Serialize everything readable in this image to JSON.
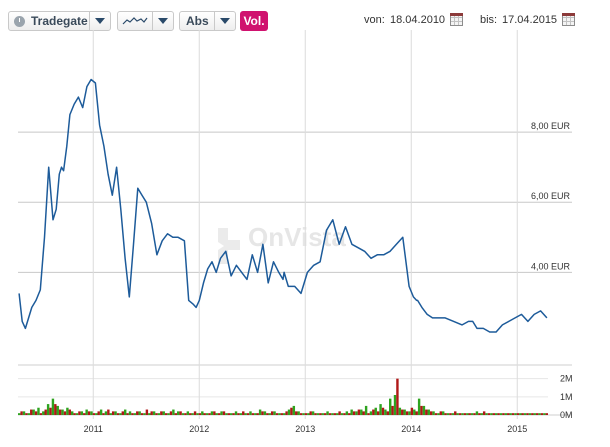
{
  "toolbar": {
    "exchange": "Tradegate",
    "chart_style_icon": "line-chart-icon",
    "scale": "Abs",
    "volume_button": "Vol.",
    "from_label": "von:",
    "from_date": "18.04.2010",
    "to_label": "bis:",
    "to_date": "17.04.2015"
  },
  "watermark": "OnVista",
  "colors": {
    "price_line": "#1d5b9a",
    "volume_up": "#2ea31f",
    "volume_down": "#b01818",
    "vol_button": "#d0126f"
  },
  "chart_data": {
    "type": "line",
    "title": "",
    "ylabel": "",
    "ylim": [
      1.5,
      10.2
    ],
    "y_ticks": [
      {
        "value": 4,
        "label": "4,00 EUR"
      },
      {
        "value": 6,
        "label": "6,00 EUR"
      },
      {
        "value": 8,
        "label": "8,00 EUR"
      }
    ],
    "x_ticks": [
      {
        "value": 2011.0,
        "label": "2011"
      },
      {
        "value": 2012.0,
        "label": "2012"
      },
      {
        "value": 2013.0,
        "label": "2013"
      },
      {
        "value": 2014.0,
        "label": "2014"
      },
      {
        "value": 2015.0,
        "label": "2015"
      }
    ],
    "xlim": [
      2010.29,
      2015.29
    ],
    "grid": true,
    "series": [
      {
        "x": [
          2010.3,
          2010.33,
          2010.36,
          2010.39,
          2010.42,
          2010.46,
          2010.5,
          2010.54,
          2010.58,
          2010.62,
          2010.65,
          2010.68,
          2010.7,
          2010.72,
          2010.75,
          2010.78,
          2010.82,
          2010.86,
          2010.9,
          2010.94,
          2010.98,
          2011.02,
          2011.06,
          2011.1,
          2011.14,
          2011.18,
          2011.22,
          2011.26,
          2011.3,
          2011.34,
          2011.38,
          2011.42,
          2011.46,
          2011.5,
          2011.55,
          2011.6,
          2011.65,
          2011.7,
          2011.75,
          2011.8,
          2011.86,
          2011.9,
          2011.94,
          2011.97,
          2012.0,
          2012.04,
          2012.08,
          2012.12,
          2012.16,
          2012.2,
          2012.25,
          2012.3,
          2012.35,
          2012.4,
          2012.45,
          2012.5,
          2012.55,
          2012.6,
          2012.65,
          2012.7,
          2012.75,
          2012.79,
          2012.8,
          2012.84,
          2012.9,
          2012.96,
          2013.02,
          2013.08,
          2013.14,
          2013.2,
          2013.26,
          2013.32,
          2013.38,
          2013.44,
          2013.5,
          2013.56,
          2013.62,
          2013.68,
          2013.74,
          2013.8,
          2013.86,
          2013.92,
          2013.98,
          2014.02,
          2014.05,
          2014.06,
          2014.1,
          2014.15,
          2014.2,
          2014.26,
          2014.32,
          2014.4,
          2014.48,
          2014.54,
          2014.58,
          2014.62,
          2014.68,
          2014.74,
          2014.8,
          2014.86,
          2014.92,
          2014.98,
          2015.04,
          2015.1,
          2015.16,
          2015.22,
          2015.28
        ],
        "y": [
          3.4,
          2.6,
          2.4,
          2.7,
          3.0,
          3.2,
          3.5,
          5.0,
          7.0,
          5.5,
          5.8,
          6.8,
          7.0,
          6.9,
          7.6,
          8.5,
          8.8,
          9.0,
          8.7,
          9.3,
          9.5,
          9.4,
          8.2,
          7.6,
          6.8,
          6.2,
          7.0,
          5.8,
          4.4,
          3.3,
          4.8,
          6.4,
          6.2,
          6.0,
          5.4,
          4.5,
          4.9,
          5.1,
          5.0,
          5.0,
          4.9,
          3.2,
          3.1,
          3.0,
          3.2,
          3.7,
          4.1,
          4.3,
          4.0,
          4.4,
          4.6,
          3.9,
          4.2,
          4.0,
          3.8,
          4.5,
          4.0,
          4.8,
          3.7,
          4.3,
          4.0,
          3.8,
          4.0,
          3.6,
          3.6,
          3.4,
          4.0,
          4.2,
          4.3,
          5.2,
          5.5,
          4.8,
          5.3,
          4.8,
          4.7,
          4.6,
          4.4,
          4.5,
          4.5,
          4.6,
          4.8,
          5.0,
          3.6,
          3.3,
          3.2,
          3.2,
          3.0,
          2.8,
          2.7,
          2.7,
          2.7,
          2.6,
          2.5,
          2.6,
          2.6,
          2.4,
          2.4,
          2.3,
          2.3,
          2.5,
          2.6,
          2.7,
          2.8,
          2.6,
          2.8,
          2.9,
          2.7
        ]
      }
    ],
    "volume": {
      "y_ticks": [
        {
          "value": 0,
          "label": "0M"
        },
        {
          "value": 1,
          "label": "1M"
        },
        {
          "value": 2,
          "label": "2M"
        }
      ],
      "ylim": [
        0,
        2.2
      ],
      "up": [
        0.1,
        0.2,
        0.1,
        0.3,
        0.4,
        0.2,
        0.6,
        0.9,
        0.5,
        0.3,
        0.4,
        0.2,
        0.1,
        0.2,
        0.3,
        0.2,
        0.1,
        0.3,
        0.2,
        0.1,
        0.2,
        0.1,
        0.3,
        0.2,
        0.1,
        0.2,
        0.1,
        0.1,
        0.2,
        0.1,
        0.2,
        0.1,
        0.3,
        0.2,
        0.1,
        0.2,
        0.1,
        0.1,
        0.2,
        0.1,
        0.2,
        0.1,
        0.2,
        0.1,
        0.1,
        0.2,
        0.1,
        0.1,
        0.2,
        0.1,
        0.3,
        0.2,
        0.1,
        0.2,
        0.1,
        0.1,
        0.3,
        0.5,
        0.2,
        0.1,
        0.1,
        0.2,
        0.1,
        0.1,
        0.2,
        0.1,
        0.1,
        0.1,
        0.2,
        0.3,
        0.2,
        0.3,
        0.5,
        0.2,
        0.4,
        0.6,
        0.3,
        0.9,
        1.1,
        0.4,
        0.3,
        0.2,
        0.3,
        0.9,
        0.5,
        0.3,
        0.2,
        0.1,
        0.2,
        0.1,
        0.1,
        0.1,
        0.1,
        0.1,
        0.1,
        0.2,
        0.1,
        0.1,
        0.1,
        0.1,
        0.1,
        0.1,
        0.1,
        0.1,
        0.1,
        0.1,
        0.1,
        0.1,
        0.1,
        0.1
      ],
      "down": [
        0.2,
        0.1,
        0.3,
        0.2,
        0.1,
        0.3,
        0.4,
        0.6,
        0.3,
        0.2,
        0.3,
        0.1,
        0.2,
        0.1,
        0.2,
        0.1,
        0.2,
        0.1,
        0.3,
        0.2,
        0.1,
        0.2,
        0.1,
        0.1,
        0.2,
        0.1,
        0.3,
        0.2,
        0.1,
        0.2,
        0.1,
        0.2,
        0.1,
        0.2,
        0.1,
        0.1,
        0.2,
        0.1,
        0.1,
        0.1,
        0.2,
        0.1,
        0.2,
        0.1,
        0.1,
        0.1,
        0.2,
        0.1,
        0.1,
        0.1,
        0.2,
        0.1,
        0.2,
        0.1,
        0.1,
        0.2,
        0.4,
        0.2,
        0.1,
        0.1,
        0.2,
        0.1,
        0.1,
        0.1,
        0.1,
        0.1,
        0.2,
        0.1,
        0.1,
        0.2,
        0.3,
        0.2,
        0.1,
        0.3,
        0.2,
        0.4,
        0.2,
        0.5,
        2.0,
        0.3,
        0.2,
        0.4,
        0.2,
        0.5,
        0.3,
        0.2,
        0.1,
        0.2,
        0.1,
        0.1,
        0.2,
        0.1,
        0.1,
        0.1,
        0.1,
        0.1,
        0.2,
        0.1,
        0.1,
        0.1,
        0.1,
        0.1,
        0.1,
        0.1,
        0.1,
        0.1,
        0.1,
        0.1,
        0.1,
        0.1
      ]
    }
  }
}
